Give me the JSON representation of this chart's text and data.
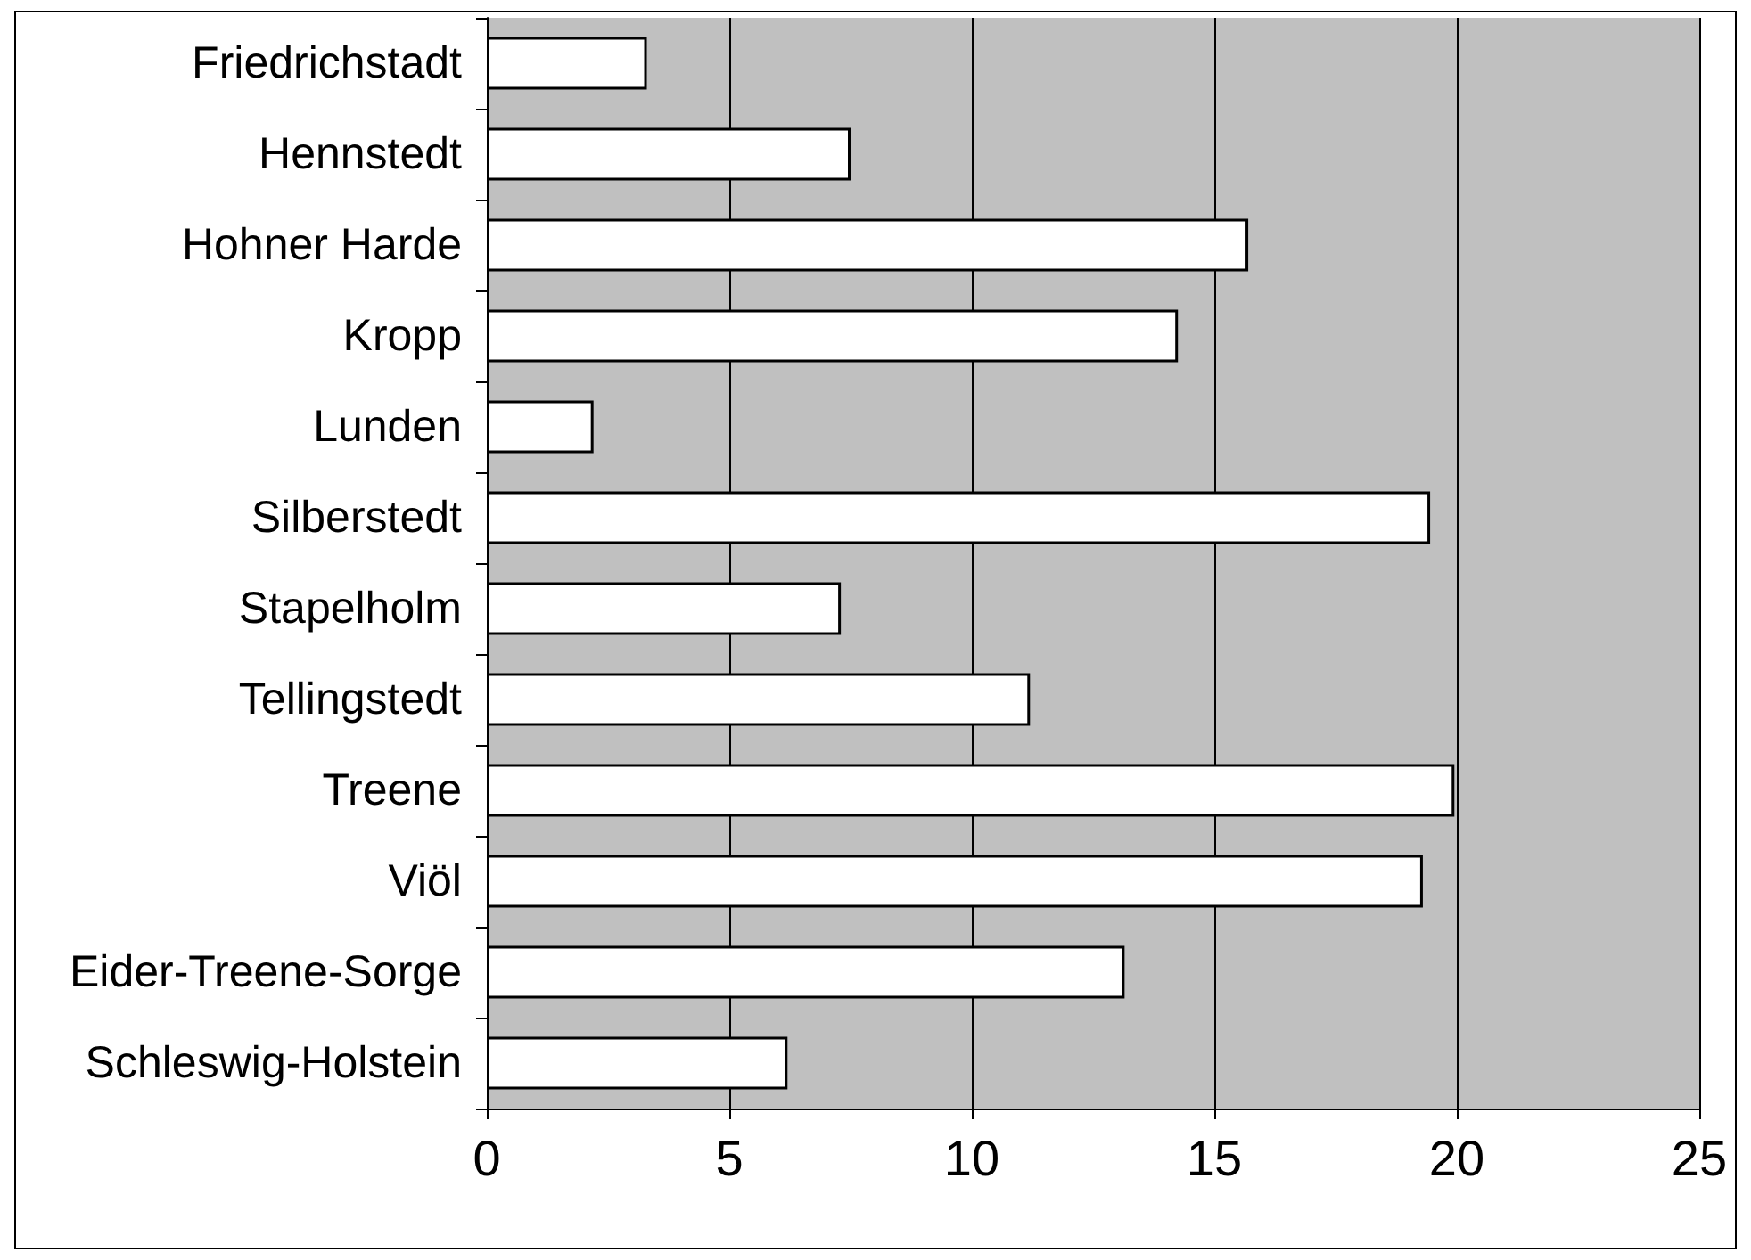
{
  "chart_data": {
    "type": "bar",
    "orientation": "horizontal",
    "categories": [
      "Friedrichstadt",
      "Hennstedt",
      "Hohner Harde",
      "Kropp",
      "Lunden",
      "Silberstedt",
      "Stapelholm",
      "Tellingstedt",
      "Treene",
      "Viöl",
      "Eider-Treene-Sorge",
      "Schleswig-Holstein"
    ],
    "values": [
      3.3,
      7.5,
      15.7,
      14.25,
      2.2,
      19.45,
      7.3,
      11.2,
      19.95,
      19.3,
      13.15,
      6.2
    ],
    "color": "#ffffff",
    "xlim": [
      0,
      25
    ],
    "xticks": [
      0,
      5,
      10,
      15,
      20,
      25
    ],
    "grid": "x"
  }
}
